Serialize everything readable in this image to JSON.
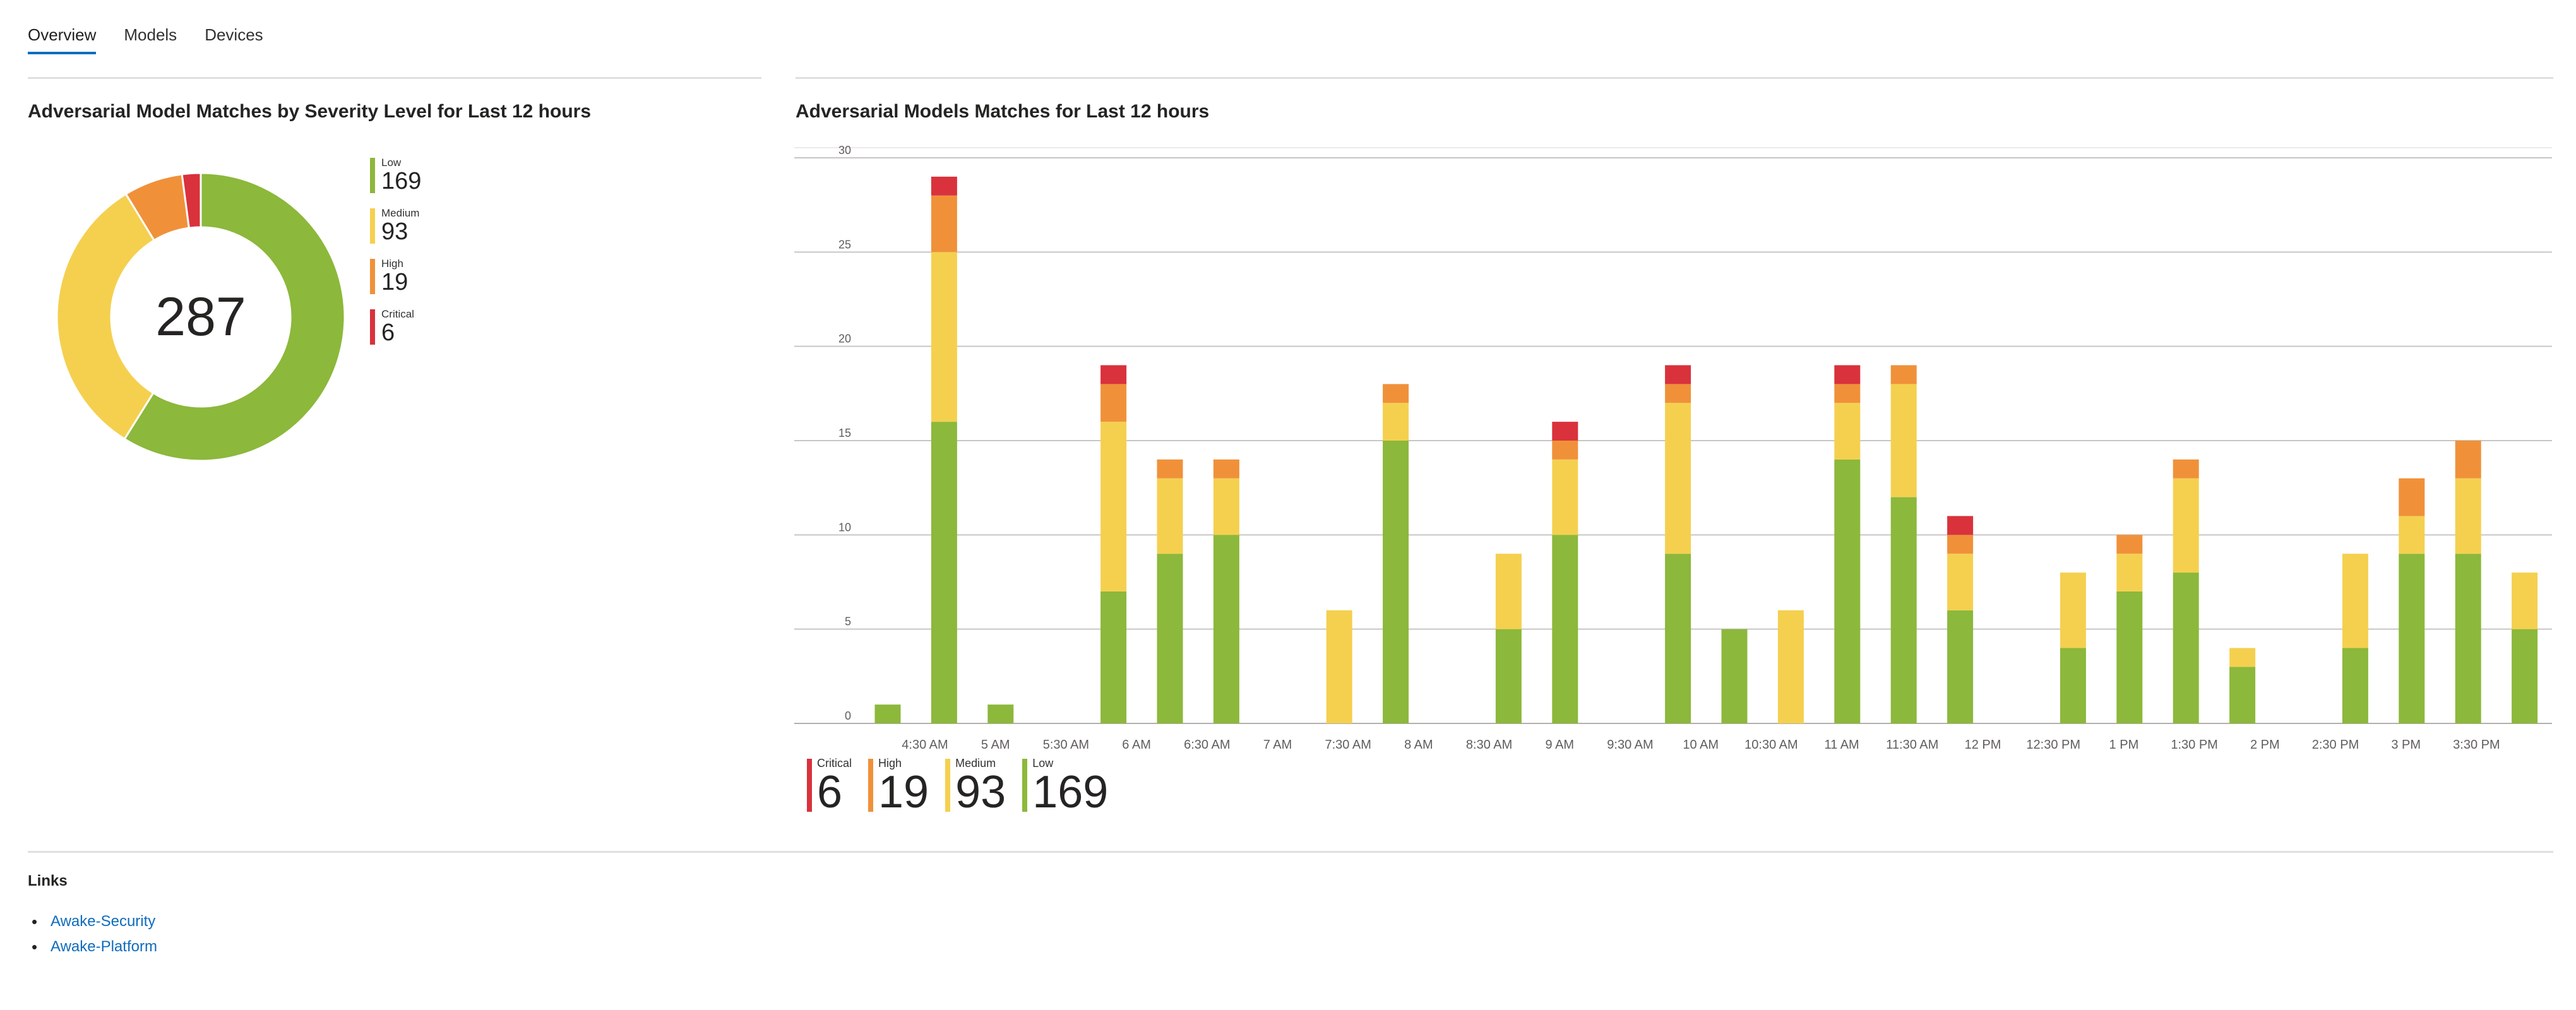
{
  "tabs": [
    {
      "label": "Overview",
      "active": true
    },
    {
      "label": "Models",
      "active": false
    },
    {
      "label": "Devices",
      "active": false
    }
  ],
  "donut_panel": {
    "title": "Adversarial Model Matches by Severity Level for Last 12 hours",
    "total": "287",
    "legend": [
      {
        "label": "Low",
        "value": "169"
      },
      {
        "label": "Medium",
        "value": "93"
      },
      {
        "label": "High",
        "value": "19"
      },
      {
        "label": "Critical",
        "value": "6"
      }
    ]
  },
  "bar_panel": {
    "title": "Adversarial Models Matches for Last 12 hours",
    "legend": [
      {
        "label": "Critical",
        "value": "6"
      },
      {
        "label": "High",
        "value": "19"
      },
      {
        "label": "Medium",
        "value": "93"
      },
      {
        "label": "Low",
        "value": "169"
      }
    ]
  },
  "colors": {
    "low": "#8cb83b",
    "medium": "#f5d04f",
    "high": "#f0913a",
    "critical": "#d9323c",
    "link": "#0f6cbd",
    "tab_active": "#0f6cbd"
  },
  "chart_data": [
    {
      "type": "pie",
      "categories": [
        "Low",
        "Medium",
        "High",
        "Critical"
      ],
      "values": [
        169,
        93,
        19,
        6
      ],
      "total": 287,
      "title": "Adversarial Model Matches by Severity Level for Last 12 hours",
      "legend": "right"
    },
    {
      "type": "bar",
      "stacked": true,
      "title": "Adversarial Models Matches for Last 12 hours",
      "xlabel": "",
      "ylabel": "",
      "ylim": [
        0,
        30
      ],
      "yticks": [
        0,
        5,
        10,
        15,
        20,
        25,
        30
      ],
      "grid": true,
      "legend": "bottom-left",
      "x_tick_labels": [
        "4:30 AM",
        "5 AM",
        "5:30 AM",
        "6 AM",
        "6:30 AM",
        "7 AM",
        "7:30 AM",
        "8 AM",
        "8:30 AM",
        "9 AM",
        "9:30 AM",
        "10 AM",
        "10:30 AM",
        "11 AM",
        "11:30 AM",
        "12 PM",
        "12:30 PM",
        "1 PM",
        "1:30 PM",
        "2 PM",
        "2:30 PM",
        "3 PM",
        "3:30 PM"
      ],
      "series": [
        {
          "name": "Low",
          "values": [
            1,
            16,
            1,
            0,
            7,
            9,
            10,
            0,
            0,
            15,
            0,
            5,
            10,
            0,
            9,
            5,
            0,
            14,
            12,
            6,
            0,
            4,
            7,
            8,
            3,
            0,
            4,
            9,
            9,
            5
          ]
        },
        {
          "name": "Medium",
          "values": [
            0,
            9,
            0,
            0,
            9,
            4,
            3,
            0,
            6,
            2,
            0,
            4,
            4,
            0,
            8,
            0,
            6,
            3,
            6,
            3,
            0,
            4,
            2,
            5,
            1,
            0,
            5,
            2,
            4,
            3
          ]
        },
        {
          "name": "High",
          "values": [
            0,
            3,
            0,
            0,
            2,
            1,
            1,
            0,
            0,
            1,
            0,
            0,
            1,
            0,
            1,
            0,
            0,
            1,
            1,
            1,
            0,
            0,
            1,
            1,
            0,
            0,
            0,
            2,
            2,
            0
          ]
        },
        {
          "name": "Critical",
          "values": [
            0,
            1,
            0,
            0,
            1,
            0,
            0,
            0,
            0,
            0,
            0,
            0,
            1,
            0,
            1,
            0,
            0,
            1,
            0,
            1,
            0,
            0,
            0,
            0,
            0,
            0,
            0,
            0,
            0,
            0
          ]
        }
      ]
    }
  ],
  "links": {
    "title": "Links",
    "items": [
      {
        "label": "Awake-Security"
      },
      {
        "label": "Awake-Platform"
      }
    ]
  }
}
